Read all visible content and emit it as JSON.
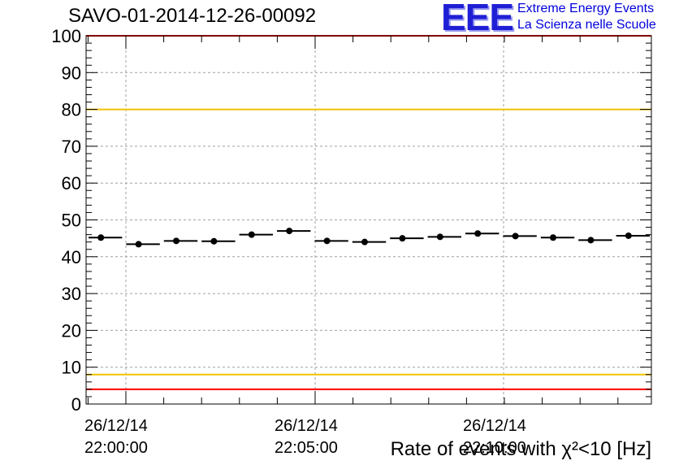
{
  "header": {
    "run_title": "SAVO-01-2014-12-26-00092",
    "logo_mark": "EEE",
    "logo_line1": "Extreme Energy Events",
    "logo_line2": "La Scienza nelle Scuole"
  },
  "chart_data": {
    "type": "scatter",
    "title": "SAVO-01-2014-12-26-00092",
    "xlabel": "Rate of events with χ²<10 [Hz]",
    "ylabel": "",
    "ylim": [
      0,
      100
    ],
    "x_tick_labels": [
      {
        "date": "26/12/14",
        "time": "22:00:00"
      },
      {
        "date": "26/12/14",
        "time": "22:05:00"
      },
      {
        "date": "26/12/14",
        "time": "22:10:00"
      }
    ],
    "y_ticks": [
      0,
      10,
      20,
      30,
      40,
      50,
      60,
      70,
      80,
      90,
      100
    ],
    "grid": true,
    "series": [
      {
        "values": [
          45.2,
          43.4,
          44.3,
          44.2,
          46.0,
          47.0,
          44.3,
          44.0,
          45.0,
          45.4,
          46.3,
          45.6,
          45.2,
          44.5,
          45.7
        ]
      }
    ],
    "reference_lines": [
      {
        "y": 80,
        "color": "#f2c200"
      },
      {
        "y": 8,
        "color": "#f2c200"
      },
      {
        "y": 4,
        "color": "#ff0000"
      },
      {
        "y": 100,
        "color": "#ff0000"
      }
    ]
  }
}
